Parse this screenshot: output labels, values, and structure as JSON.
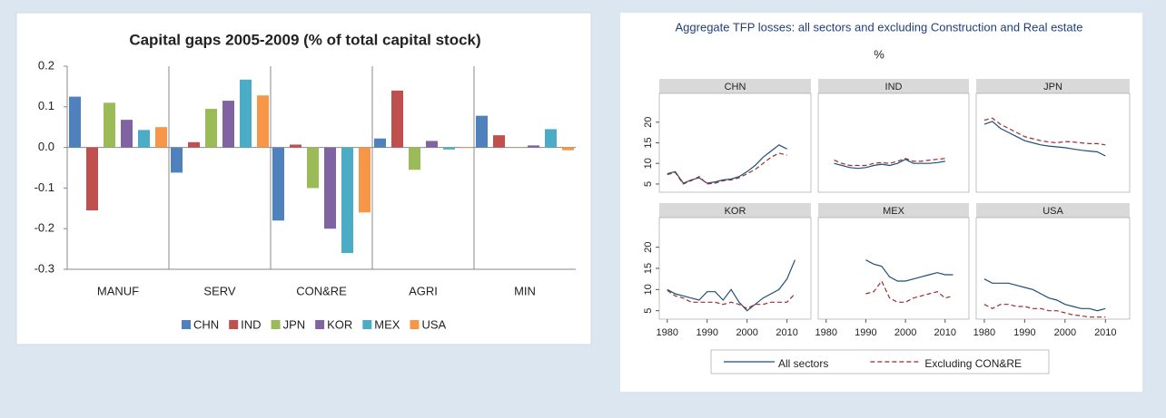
{
  "chart_data": [
    {
      "type": "bar",
      "title": "Capital gaps 2005-2009 (% of total capital stock)",
      "categories": [
        "MANUF",
        "SERV",
        "CON&RE",
        "AGRI",
        "MIN"
      ],
      "series": [
        {
          "name": "CHN",
          "color": "#4f81bd",
          "values": [
            0.125,
            -0.062,
            -0.18,
            0.022,
            0.078
          ]
        },
        {
          "name": "IND",
          "color": "#c0504d",
          "values": [
            -0.155,
            0.013,
            0.007,
            0.14,
            0.03
          ]
        },
        {
          "name": "JPN",
          "color": "#9bbb59",
          "values": [
            0.11,
            0.095,
            -0.1,
            -0.055,
            0
          ]
        },
        {
          "name": "KOR",
          "color": "#8064a2",
          "values": [
            0.068,
            0.115,
            -0.2,
            0.016,
            0.005
          ]
        },
        {
          "name": "MEX",
          "color": "#4bacc6",
          "values": [
            0.043,
            0.167,
            -0.26,
            -0.005,
            0.045
          ]
        },
        {
          "name": "USA",
          "color": "#f79646",
          "values": [
            0.05,
            0.128,
            -0.16,
            0,
            -0.007
          ]
        }
      ],
      "ylim": [
        -0.3,
        0.2
      ],
      "yticks": [
        -0.3,
        -0.2,
        -0.1,
        {
          "value": 0,
          "label": "0.0"
        },
        0.1,
        0.2
      ],
      "legend": "bottom"
    },
    {
      "type": "line-facets",
      "title": "Aggregate TFP losses: all sectors and excluding Construction and Real estate",
      "subtitle": "%",
      "x": [
        1980,
        1982,
        1984,
        1986,
        1988,
        1990,
        1992,
        1994,
        1996,
        1998,
        2000,
        2002,
        2004,
        2006,
        2008,
        2010,
        2012
      ],
      "xlim": [
        1978,
        2016
      ],
      "xticks": [
        1980,
        1990,
        2000,
        2010
      ],
      "ylim": [
        3,
        27
      ],
      "yticks": [
        5,
        10,
        15,
        20
      ],
      "series": [
        {
          "name": "All sectors",
          "color": "#1f4e79",
          "dashed": false
        },
        {
          "name": "Excluding CON&RE",
          "color": "#9b2d2d",
          "dashed": true
        }
      ],
      "panels": [
        {
          "title": "CHN",
          "values": [
            [
              7.5,
              8,
              5.2,
              6,
              6.5,
              5.2,
              5.5,
              6,
              6.2,
              6.8,
              8,
              9.5,
              11.5,
              13,
              14.5,
              13.5,
              null
            ],
            [
              7.3,
              7.8,
              5,
              5.8,
              6.8,
              5,
              5.2,
              5.8,
              6,
              6.5,
              7.5,
              8.5,
              10,
              11.5,
              12.5,
              12,
              null
            ]
          ]
        },
        {
          "title": "IND",
          "values": [
            [
              null,
              10,
              9.5,
              9,
              8.8,
              9,
              9.5,
              9.8,
              9.5,
              10,
              11,
              10,
              10,
              10,
              10.2,
              10.5,
              null
            ],
            [
              null,
              10.8,
              10,
              9.5,
              9.5,
              9.5,
              10,
              10.2,
              10,
              10.5,
              11.2,
              10.5,
              10.5,
              10.8,
              11,
              11.2,
              null
            ]
          ]
        },
        {
          "title": "JPN",
          "values": [
            [
              19.5,
              20.2,
              18.5,
              17.5,
              16.5,
              15.5,
              15,
              14.5,
              14.2,
              14,
              13.8,
              13.5,
              13.2,
              13,
              12.8,
              11.8,
              null
            ],
            [
              20.5,
              21,
              19.5,
              18.5,
              17.5,
              16.5,
              16,
              15.5,
              15.2,
              15,
              15.3,
              15.2,
              15,
              14.8,
              14.8,
              14.5,
              null
            ]
          ]
        },
        {
          "title": "KOR",
          "values": [
            [
              10,
              9,
              8.5,
              8,
              7.5,
              9.5,
              9.5,
              7.5,
              10,
              7,
              5,
              6.5,
              8,
              9,
              10,
              12.5,
              17
            ],
            [
              9.8,
              8.5,
              8,
              7,
              7,
              7,
              7,
              6.5,
              7,
              6.5,
              5.5,
              6.5,
              6.5,
              7,
              7,
              7,
              9
            ]
          ]
        },
        {
          "title": "MEX",
          "values": [
            [
              null,
              null,
              null,
              null,
              null,
              17,
              16,
              15.5,
              13,
              12,
              12,
              12.5,
              13,
              13.5,
              14,
              13.5,
              13.5
            ],
            [
              null,
              null,
              null,
              null,
              null,
              9,
              9.5,
              12,
              8,
              7,
              7,
              8,
              8.5,
              9,
              9.5,
              8,
              8.5
            ]
          ]
        },
        {
          "title": "USA",
          "values": [
            [
              12.5,
              11.5,
              11.5,
              11.5,
              11,
              10.5,
              10,
              9,
              8,
              7.5,
              6.5,
              6,
              5.5,
              5.5,
              5,
              5.5,
              null
            ],
            [
              6.5,
              5.5,
              6.5,
              6.5,
              6,
              6,
              5.5,
              5.5,
              5,
              5,
              4.5,
              4,
              3.8,
              3.5,
              3.5,
              3.5,
              null
            ]
          ]
        }
      ]
    }
  ]
}
